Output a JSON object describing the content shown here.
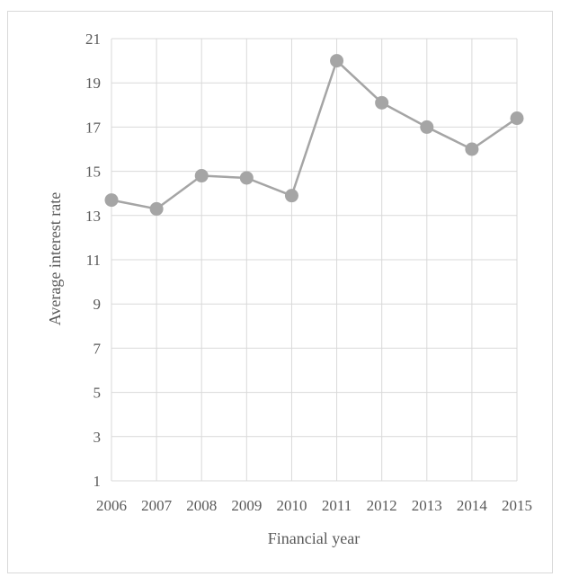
{
  "chart_data": {
    "type": "line",
    "title": "",
    "xlabel": "Financial year",
    "ylabel": "Average interest rate",
    "categories": [
      "2006",
      "2007",
      "2008",
      "2009",
      "2010",
      "2011",
      "2012",
      "2013",
      "2014",
      "2015"
    ],
    "series": [
      {
        "values": [
          13.7,
          13.3,
          14.8,
          14.7,
          13.9,
          20.0,
          18.1,
          17.0,
          16.0,
          17.4
        ]
      }
    ],
    "ylim": [
      1,
      21
    ],
    "yticks": [
      1,
      3,
      5,
      7,
      9,
      11,
      13,
      15,
      17,
      19,
      21
    ],
    "grid": true,
    "legend": "none",
    "colors": {
      "line": "#a5a5a5",
      "marker": "#a5a5a5",
      "grid": "#d9d9d9",
      "text": "#595959"
    }
  }
}
